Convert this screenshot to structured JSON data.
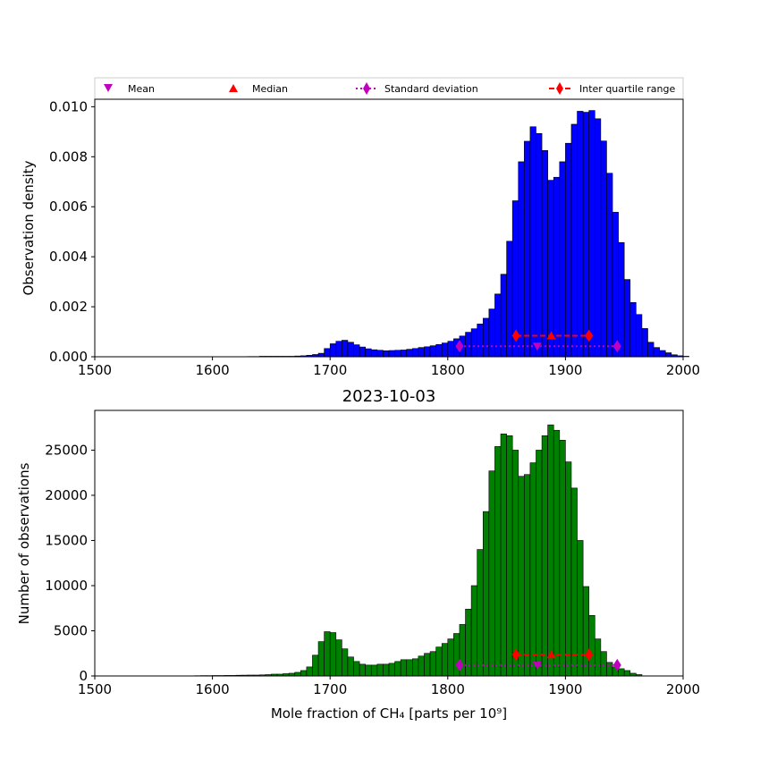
{
  "chart_data": [
    {
      "type": "bar",
      "panel": "top",
      "title": "",
      "xlabel": "",
      "ylabel": "Observation density",
      "xlim": [
        1500,
        2000
      ],
      "ylim": [
        0,
        0.0103
      ],
      "xticks": [
        "1500",
        "1600",
        "1700",
        "1800",
        "1900",
        "2000"
      ],
      "yticks": [
        "0.000",
        "0.002",
        "0.004",
        "0.006",
        "0.008",
        "0.010"
      ],
      "ytick_values": [
        0,
        0.002,
        0.004,
        0.006,
        0.008,
        0.01
      ],
      "bar_color": "#0000ff",
      "bin_width": 5,
      "bin_start": 1630,
      "values": [
        1e-05,
        1e-05,
        2e-05,
        2e-05,
        2e-05,
        2e-05,
        2e-05,
        2e-05,
        3e-05,
        4e-05,
        6e-05,
        9e-05,
        0.00014,
        0.00033,
        0.00052,
        0.00062,
        0.00066,
        0.00058,
        0.00048,
        0.00039,
        0.00032,
        0.00028,
        0.00026,
        0.00024,
        0.00025,
        0.00026,
        0.00027,
        0.0003,
        0.00033,
        0.00037,
        0.0004,
        0.00044,
        0.00049,
        0.00055,
        0.00062,
        0.00072,
        0.00083,
        0.00098,
        0.00112,
        0.00131,
        0.00154,
        0.00191,
        0.00251,
        0.0033,
        0.00462,
        0.00624,
        0.0078,
        0.00862,
        0.0092,
        0.00893,
        0.00825,
        0.00706,
        0.00718,
        0.0078,
        0.00854,
        0.0093,
        0.00982,
        0.00978,
        0.00985,
        0.00952,
        0.00863,
        0.00734,
        0.00578,
        0.00457,
        0.00309,
        0.00217,
        0.00169,
        0.00113,
        0.00058,
        0.00037,
        0.00025,
        0.00016,
        8e-05,
        4e-05,
        2e-05
      ],
      "markers": {
        "mean": {
          "x": 1876,
          "y": 0.00042
        },
        "median": {
          "x": 1888,
          "y": 0.00084
        },
        "std": {
          "x": [
            1810,
            1944
          ],
          "y": 0.00042
        },
        "iqr": {
          "x": [
            1858,
            1920
          ],
          "y": 0.00084
        }
      },
      "legend": {
        "placement": "top",
        "entries": [
          {
            "label": "Mean",
            "marker": "triangle-down",
            "color": "#bf00bf"
          },
          {
            "label": "Median",
            "marker": "triangle-up",
            "color": "#ff0000"
          },
          {
            "label": "Standard deviation",
            "marker": "diamond",
            "line": "dotted",
            "color": "#bf00bf"
          },
          {
            "label": "Inter quartile range",
            "marker": "diamond",
            "line": "dashed",
            "color": "#ff0000"
          }
        ]
      }
    },
    {
      "type": "bar",
      "panel": "bottom",
      "title": "2023-10-03",
      "xlabel": "Mole fraction of CH₄ [parts per 10⁹]",
      "ylabel": "Number of observations",
      "xlim": [
        1500,
        2000
      ],
      "ylim": [
        0,
        29400
      ],
      "xticks": [
        "1500",
        "1600",
        "1700",
        "1800",
        "1900",
        "2000"
      ],
      "yticks": [
        "0",
        "5000",
        "10000",
        "15000",
        "20000",
        "25000"
      ],
      "ytick_values": [
        0,
        5000,
        10000,
        15000,
        20000,
        25000
      ],
      "bar_color": "#008000",
      "bin_width": 5,
      "bin_start": 1585,
      "values": [
        30,
        40,
        40,
        50,
        50,
        60,
        60,
        80,
        90,
        100,
        100,
        120,
        150,
        200,
        200,
        250,
        300,
        400,
        600,
        1000,
        2300,
        3800,
        4900,
        4800,
        4000,
        3000,
        2100,
        1600,
        1300,
        1200,
        1200,
        1300,
        1300,
        1400,
        1600,
        1800,
        1800,
        1900,
        2200,
        2500,
        2700,
        3200,
        3600,
        4100,
        4700,
        5700,
        7400,
        10000,
        14000,
        18200,
        22700,
        25400,
        26800,
        26600,
        25000,
        22100,
        22300,
        23600,
        25000,
        26600,
        27800,
        27200,
        26100,
        23700,
        20800,
        15000,
        9900,
        6700,
        4100,
        2700,
        1500,
        1000,
        800,
        600,
        300,
        150
      ],
      "markers": {
        "mean": {
          "x": 1876,
          "y": 1200
        },
        "median": {
          "x": 1888,
          "y": 2350
        },
        "std": {
          "x": [
            1810,
            1944
          ],
          "y": 1200
        },
        "iqr": {
          "x": [
            1858,
            1920
          ],
          "y": 2350
        }
      }
    }
  ]
}
